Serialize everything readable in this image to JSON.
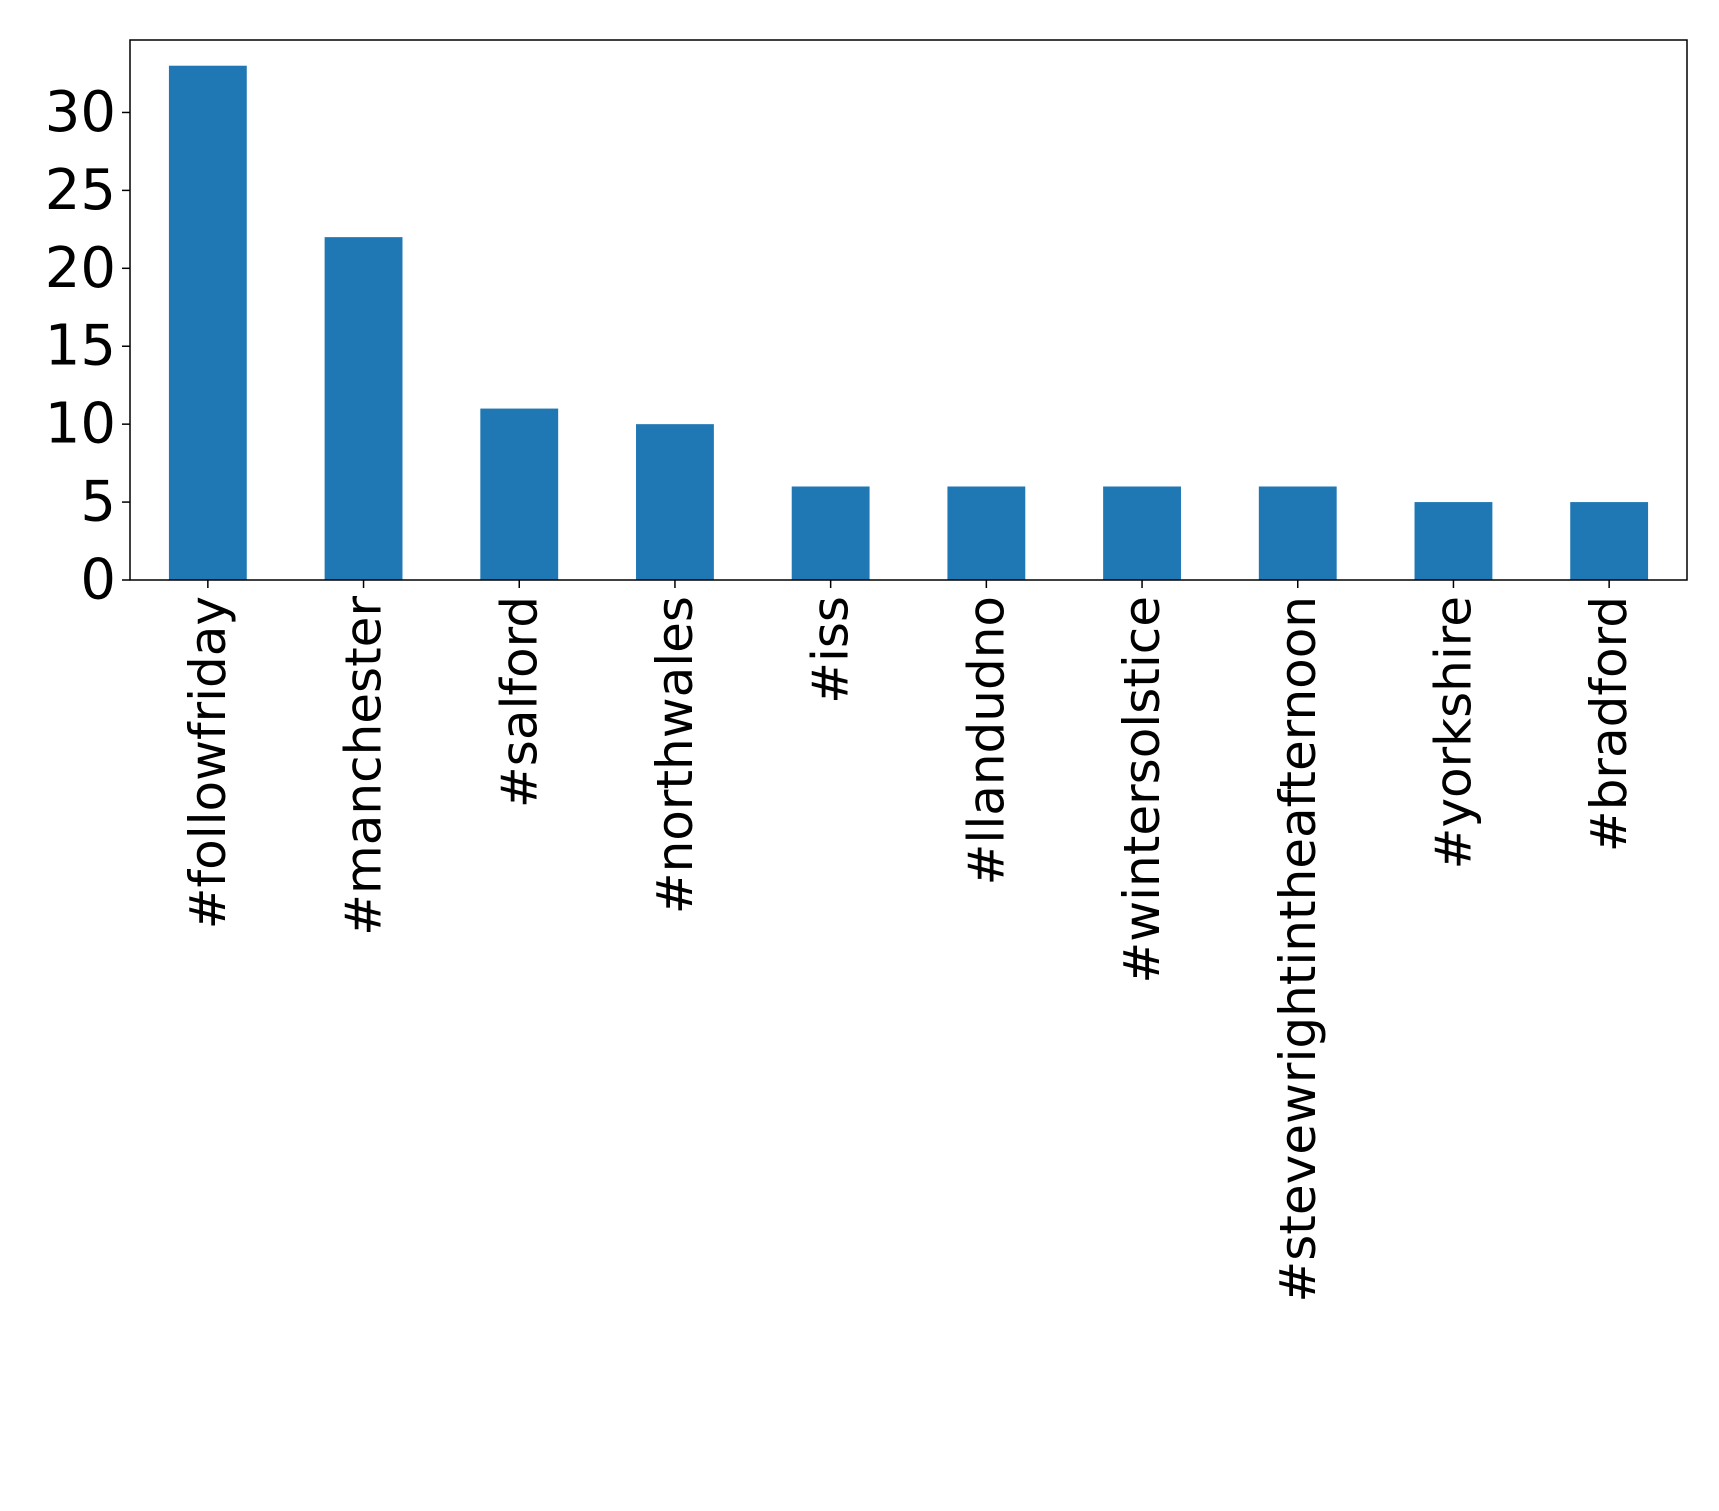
{
  "chart_data": {
    "type": "bar",
    "title": "",
    "xlabel": "",
    "ylabel": "",
    "categories": [
      "#followfriday",
      "#manchester",
      "#salford",
      "#northwales",
      "#iss",
      "#llandudno",
      "#wintersolstice",
      "#stevewrightintheafternoon",
      "#yorkshire",
      "#bradford"
    ],
    "values": [
      33,
      22,
      11,
      10,
      6,
      6,
      6,
      6,
      5,
      5
    ],
    "ylim": [
      0,
      34.65
    ],
    "yticks": [
      "0",
      "5",
      "10",
      "15",
      "20",
      "25",
      "30"
    ],
    "bar_color": "#1f77b4",
    "grid": false,
    "legend": "none"
  }
}
